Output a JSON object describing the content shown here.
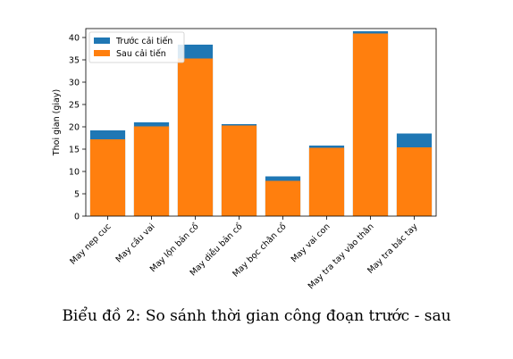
{
  "caption": "Biểu đồ 2: So sánh thời gian công đoạn trước - sau",
  "chart_data": {
    "type": "bar",
    "stacked": "overlay",
    "title": "",
    "xlabel": "",
    "ylabel": "Thoi gian (giay)",
    "ylim": [
      0,
      42
    ],
    "yticks": [
      0,
      5,
      10,
      15,
      20,
      25,
      30,
      35,
      40
    ],
    "grid": false,
    "legend_position": "top-left",
    "categories": [
      "May nep cuc",
      "May cầu vai",
      "May lộn bản cổ",
      "May diễu bản cổ",
      "May bọc chân cổ",
      "May vai con",
      "May tra tay vào thân",
      "May tra bác tay"
    ],
    "series": [
      {
        "name": "Trước cải tiến",
        "color": "#1f77b4",
        "values": [
          19.2,
          21.0,
          38.4,
          20.6,
          8.9,
          15.8,
          41.4,
          18.5
        ]
      },
      {
        "name": "Sau cải tiến",
        "color": "#ff7f0e",
        "values": [
          17.2,
          20.1,
          35.3,
          20.3,
          7.9,
          15.3,
          40.9,
          15.4
        ]
      }
    ]
  }
}
